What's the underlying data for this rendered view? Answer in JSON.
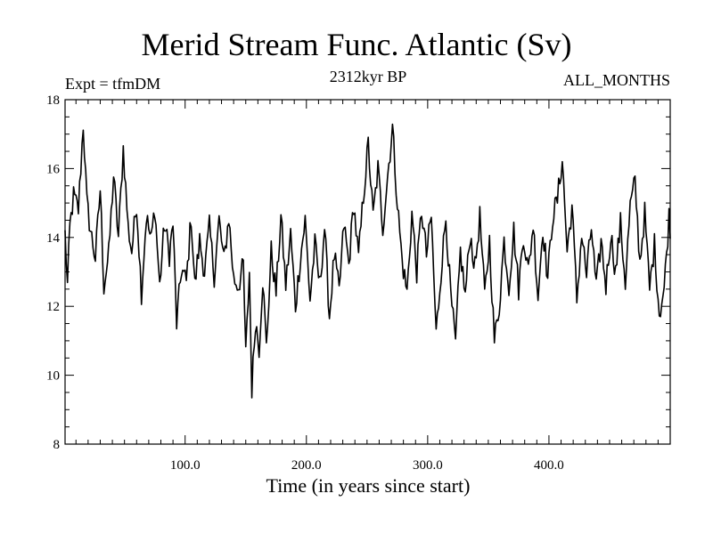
{
  "chart_data": {
    "type": "line",
    "title": "Merid Stream Func. Atlantic (Sv)",
    "subtitle": "2312kyr BP",
    "left_label": "Expt = tfmDM",
    "right_label": "ALL_MONTHS",
    "xlabel": "Time (in years since start)",
    "ylabel": "",
    "xlim": [
      1,
      500
    ],
    "ylim": [
      8,
      18
    ],
    "x_tick_labels": [
      "100.0",
      "200.0",
      "300.0",
      "400.0"
    ],
    "y_tick_labels": [
      "8",
      "10",
      "12",
      "14",
      "16",
      "18"
    ],
    "line_color": "#000000",
    "x_start": 1,
    "x_step": 1,
    "anchors": [
      [
        1,
        14.1
      ],
      [
        3,
        12.6
      ],
      [
        5,
        14.3
      ],
      [
        8,
        15.2
      ],
      [
        12,
        14.8
      ],
      [
        16,
        17.3
      ],
      [
        19,
        15.0
      ],
      [
        22,
        14.2
      ],
      [
        26,
        13.4
      ],
      [
        30,
        15.4
      ],
      [
        33,
        12.6
      ],
      [
        37,
        13.5
      ],
      [
        41,
        15.8
      ],
      [
        45,
        14.0
      ],
      [
        49,
        16.6
      ],
      [
        53,
        14.3
      ],
      [
        56,
        13.6
      ],
      [
        60,
        15.0
      ],
      [
        64,
        12.4
      ],
      [
        68,
        14.6
      ],
      [
        72,
        13.9
      ],
      [
        75,
        14.9
      ],
      [
        79,
        12.6
      ],
      [
        83,
        14.4
      ],
      [
        87,
        13.5
      ],
      [
        90,
        14.4
      ],
      [
        93,
        11.5
      ],
      [
        97,
        13.1
      ],
      [
        101,
        12.7
      ],
      [
        105,
        14.6
      ],
      [
        108,
        12.6
      ],
      [
        112,
        13.9
      ],
      [
        116,
        13.0
      ],
      [
        120,
        14.3
      ],
      [
        124,
        12.9
      ],
      [
        128,
        14.5
      ],
      [
        132,
        13.3
      ],
      [
        136,
        14.6
      ],
      [
        140,
        12.8
      ],
      [
        144,
        12.6
      ],
      [
        148,
        13.2
      ],
      [
        150,
        10.6
      ],
      [
        153,
        13.0
      ],
      [
        155,
        9.6
      ],
      [
        158,
        11.6
      ],
      [
        161,
        10.8
      ],
      [
        164,
        12.8
      ],
      [
        167,
        10.8
      ],
      [
        171,
        13.6
      ],
      [
        175,
        12.4
      ],
      [
        179,
        14.6
      ],
      [
        183,
        12.6
      ],
      [
        187,
        14.1
      ],
      [
        191,
        12.0
      ],
      [
        195,
        13.4
      ],
      [
        199,
        14.5
      ],
      [
        203,
        12.2
      ],
      [
        207,
        13.8
      ],
      [
        211,
        12.6
      ],
      [
        215,
        14.3
      ],
      [
        219,
        11.7
      ],
      [
        223,
        13.5
      ],
      [
        227,
        12.4
      ],
      [
        231,
        14.4
      ],
      [
        235,
        13.2
      ],
      [
        239,
        15.0
      ],
      [
        243,
        13.4
      ],
      [
        247,
        15.2
      ],
      [
        251,
        16.7
      ],
      [
        255,
        14.6
      ],
      [
        259,
        16.0
      ],
      [
        263,
        14.3
      ],
      [
        267,
        15.8
      ],
      [
        271,
        17.2
      ],
      [
        275,
        15.0
      ],
      [
        279,
        13.3
      ],
      [
        283,
        12.4
      ],
      [
        287,
        14.7
      ],
      [
        291,
        13.0
      ],
      [
        295,
        14.8
      ],
      [
        299,
        13.5
      ],
      [
        303,
        14.6
      ],
      [
        307,
        11.2
      ],
      [
        311,
        13.0
      ],
      [
        315,
        14.6
      ],
      [
        319,
        12.3
      ],
      [
        323,
        10.9
      ],
      [
        327,
        13.6
      ],
      [
        331,
        12.3
      ],
      [
        335,
        14.1
      ],
      [
        339,
        13.1
      ],
      [
        343,
        14.6
      ],
      [
        347,
        12.3
      ],
      [
        351,
        13.9
      ],
      [
        355,
        11.0
      ],
      [
        359,
        12.0
      ],
      [
        363,
        13.9
      ],
      [
        367,
        12.6
      ],
      [
        371,
        14.2
      ],
      [
        375,
        12.5
      ],
      [
        379,
        14.1
      ],
      [
        383,
        13.0
      ],
      [
        387,
        14.4
      ],
      [
        391,
        12.3
      ],
      [
        395,
        14.3
      ],
      [
        399,
        12.8
      ],
      [
        403,
        14.6
      ],
      [
        407,
        15.1
      ],
      [
        411,
        16.3
      ],
      [
        415,
        13.6
      ],
      [
        419,
        14.9
      ],
      [
        423,
        12.2
      ],
      [
        427,
        14.1
      ],
      [
        431,
        12.9
      ],
      [
        435,
        14.3
      ],
      [
        439,
        12.5
      ],
      [
        443,
        13.9
      ],
      [
        447,
        12.6
      ],
      [
        451,
        14.1
      ],
      [
        455,
        13.0
      ],
      [
        459,
        14.4
      ],
      [
        463,
        12.7
      ],
      [
        467,
        14.9
      ],
      [
        471,
        15.6
      ],
      [
        475,
        13.3
      ],
      [
        479,
        14.7
      ],
      [
        483,
        12.5
      ],
      [
        487,
        13.8
      ],
      [
        491,
        11.8
      ],
      [
        495,
        12.5
      ],
      [
        499,
        14.6
      ],
      [
        500,
        14.3
      ]
    ]
  }
}
